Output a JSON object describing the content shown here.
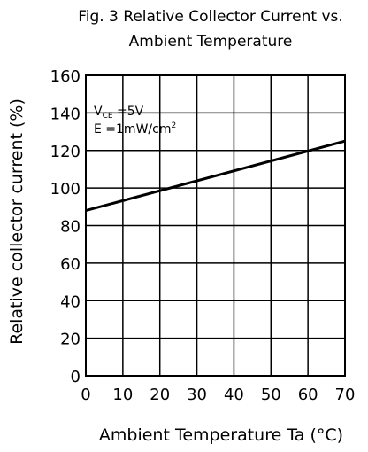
{
  "chart_data": {
    "type": "line",
    "title_line1": "Fig. 3 Relative Collector Current vs.",
    "title_line2": "Ambient Temperature",
    "xlabel": "Ambient Temperature Ta (°C)",
    "ylabel": "Relative collector current (%)",
    "xlim": [
      0,
      70
    ],
    "ylim": [
      0,
      160
    ],
    "x_ticks": [
      0,
      10,
      20,
      30,
      40,
      50,
      60,
      70
    ],
    "y_ticks": [
      0,
      20,
      40,
      60,
      80,
      100,
      120,
      140,
      160
    ],
    "grid": true,
    "legend": {
      "vce_main": "V",
      "vce_sub": "CE",
      "vce_value": " =5V",
      "e_text": "E  =1mW/cm",
      "e_sup": "2"
    },
    "series": [
      {
        "x": [
          0,
          70
        ],
        "y": [
          88,
          125
        ]
      }
    ]
  }
}
